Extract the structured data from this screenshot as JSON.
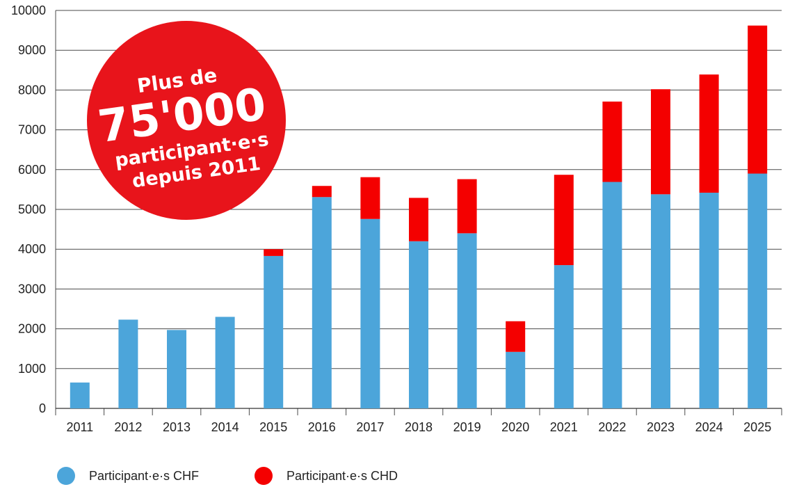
{
  "chart_data": {
    "type": "bar",
    "stacked": true,
    "categories": [
      "2011",
      "2012",
      "2013",
      "2014",
      "2015",
      "2016",
      "2017",
      "2018",
      "2019",
      "2020",
      "2021",
      "2022",
      "2023",
      "2024",
      "2025"
    ],
    "series": [
      {
        "name": "Participant·e·s CHF",
        "color": "#4ca5da",
        "values": [
          650,
          2230,
          1970,
          2300,
          3830,
          5310,
          4760,
          4200,
          4400,
          1420,
          3600,
          5690,
          5380,
          5420,
          5900
        ]
      },
      {
        "name": "Participant·e·s CHD",
        "color": "#f40000",
        "values": [
          0,
          0,
          0,
          0,
          170,
          280,
          1050,
          1090,
          1360,
          770,
          2270,
          2020,
          2640,
          2970,
          3720
        ]
      }
    ],
    "ylim": [
      0,
      10000
    ],
    "yticks": [
      0,
      1000,
      2000,
      3000,
      4000,
      5000,
      6000,
      7000,
      8000,
      9000,
      10000
    ],
    "grid": true,
    "legend_position": "bottom-left",
    "title": "",
    "xlabel": "",
    "ylabel": ""
  },
  "badge": {
    "line1": "Plus de",
    "line2": "75'000",
    "line3": "participant·e·s",
    "line4": "depuis 2011",
    "color": "#e8141b"
  }
}
